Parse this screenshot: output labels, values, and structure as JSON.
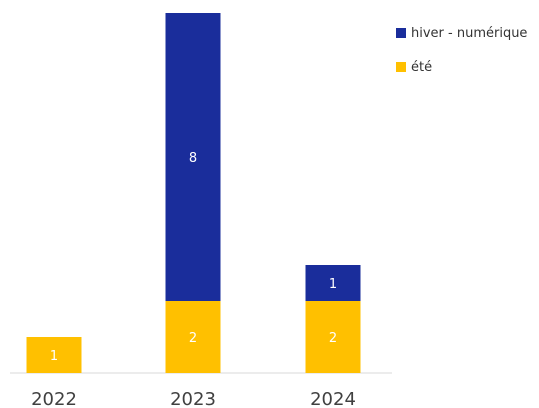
{
  "chart_data": {
    "type": "bar",
    "stacked": true,
    "categories": [
      "2022",
      "2023",
      "2024"
    ],
    "series": [
      {
        "name": "été",
        "values": [
          1,
          2,
          2
        ],
        "color": "#FFC000",
        "labels": [
          "1",
          "2",
          "2"
        ]
      },
      {
        "name": "hiver - numérique",
        "values": [
          0,
          8,
          1
        ],
        "color": "#1A2D9B",
        "labels": [
          "",
          "8",
          "1"
        ]
      }
    ],
    "ylim": [
      0,
      10
    ],
    "grid": false,
    "legend_position": "top-right",
    "title": "",
    "xlabel": "",
    "ylabel": ""
  },
  "legend": [
    {
      "label": "hiver - numérique",
      "color": "#1A2D9B"
    },
    {
      "label": "été",
      "color": "#FFC000"
    }
  ]
}
